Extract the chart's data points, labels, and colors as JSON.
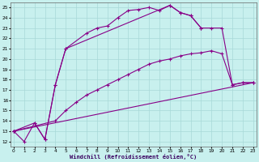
{
  "background_color": "#c8f0ee",
  "grid_color": "#a8d8d8",
  "line_color": "#880088",
  "line_width": 0.8,
  "marker": "+",
  "marker_size": 3,
  "marker_edge_width": 0.8,
  "xlabel": "Windchill (Refroidissement éolien,°C)",
  "xlabel_fontsize": 5.0,
  "tick_fontsize": 4.2,
  "xlim": [
    -0.3,
    23.3
  ],
  "ylim": [
    11.5,
    25.5
  ],
  "xticks": [
    0,
    1,
    2,
    3,
    4,
    5,
    6,
    7,
    8,
    9,
    10,
    11,
    12,
    13,
    14,
    15,
    16,
    17,
    18,
    19,
    20,
    21,
    22,
    23
  ],
  "yticks": [
    12,
    13,
    14,
    15,
    16,
    17,
    18,
    19,
    20,
    21,
    22,
    23,
    24,
    25
  ],
  "series": [
    {
      "x": [
        0,
        1,
        2,
        3,
        4,
        5,
        7,
        8,
        9,
        10,
        11,
        12,
        13,
        14,
        15,
        16,
        17,
        18
      ],
      "y": [
        13,
        12,
        13.8,
        12.2,
        17.5,
        21.0,
        22.5,
        23.0,
        23.2,
        24.0,
        24.7,
        24.8,
        25.0,
        24.7,
        25.2,
        24.5,
        24.2,
        23.0
      ]
    },
    {
      "x": [
        0,
        2,
        3,
        4,
        5,
        15,
        16,
        17,
        18,
        19,
        20,
        21,
        22,
        23
      ],
      "y": [
        13.0,
        13.8,
        12.2,
        17.5,
        21.0,
        25.2,
        24.5,
        24.2,
        23.0,
        23.0,
        23.0,
        17.5,
        17.7,
        17.7
      ]
    },
    {
      "x": [
        0,
        4,
        5,
        6,
        7,
        8,
        9,
        10,
        11,
        12,
        13,
        14,
        15,
        16,
        17,
        18,
        19,
        20,
        21,
        22,
        23
      ],
      "y": [
        13.0,
        14.0,
        15.0,
        15.8,
        16.5,
        17.0,
        17.5,
        18.0,
        18.5,
        19.0,
        19.5,
        19.8,
        20.0,
        20.3,
        20.5,
        20.6,
        20.8,
        20.5,
        17.5,
        17.7,
        17.7
      ]
    },
    {
      "x": [
        0,
        23
      ],
      "y": [
        13.0,
        17.7
      ]
    }
  ]
}
